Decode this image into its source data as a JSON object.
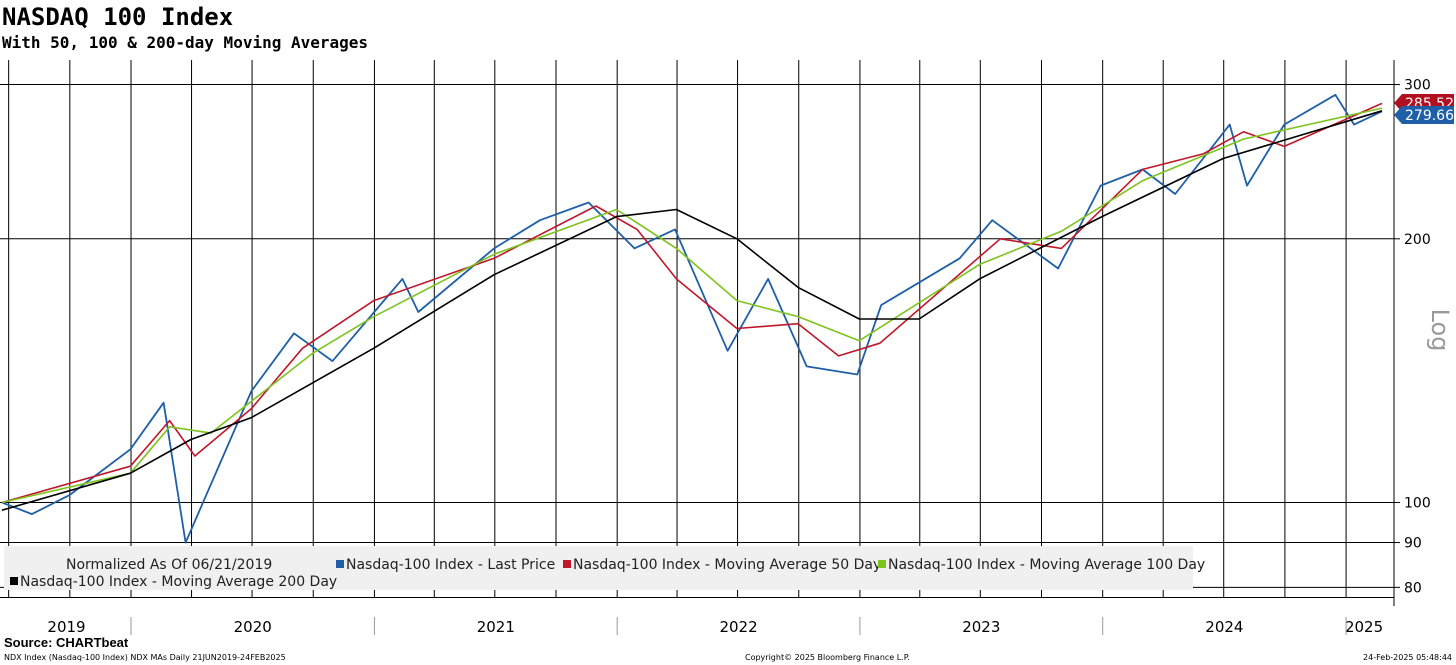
{
  "header": {
    "title": "NASDAQ 100 Index",
    "subtitle": "With 50, 100 & 200-day Moving Averages"
  },
  "footer": {
    "source": "Source: CHARTbeat",
    "left": "NDX Index (Nasdaq-100 Index) NDX MAs  Daily 21JUN2019-24FEB2025",
    "center": "Copyright© 2025 Bloomberg Finance L.P.",
    "right": "24-Feb-2025 05:48:44"
  },
  "colors": {
    "last_price": "#1f5fa8",
    "ma50": "#c0182a",
    "ma100": "#7dc41d",
    "ma200": "#000000"
  },
  "chart_data": {
    "type": "line",
    "title": "NASDAQ 100 Index",
    "subtitle": "With 50, 100 & 200-day Moving Averages",
    "x_unit": "date",
    "xlim": [
      "2019-06-21",
      "2025-02-24"
    ],
    "ylim": [
      78,
      320
    ],
    "y_scale": "log",
    "y_axis_label": "Log",
    "y_ticks": [
      80,
      90,
      100,
      200,
      300
    ],
    "x_tick_labels": [
      "2019",
      "2020",
      "2021",
      "2022",
      "2023",
      "2024",
      "2025"
    ],
    "legend_title": "Normalized As Of 06/21/2019",
    "legend_position": "bottom",
    "grid": true,
    "last_values": [
      {
        "series": "Nasdaq-100 Index - Moving Average 50 Day",
        "label": "285.52"
      },
      {
        "series": "Nasdaq-100 Index - Last Price",
        "label": "279.66"
      }
    ],
    "series": [
      {
        "name": "Nasdaq-100 Index - Last Price",
        "color": "#1f5fa8",
        "x": [
          "2019-06-21",
          "2019-08-05",
          "2019-10-01",
          "2019-12-31",
          "2020-02-19",
          "2020-03-23",
          "2020-06-30",
          "2020-09-02",
          "2020-10-30",
          "2021-02-12",
          "2021-03-08",
          "2021-06-30",
          "2021-09-07",
          "2021-11-19",
          "2022-01-27",
          "2022-03-29",
          "2022-06-16",
          "2022-08-16",
          "2022-10-13",
          "2022-12-28",
          "2023-02-02",
          "2023-05-31",
          "2023-07-19",
          "2023-10-26",
          "2023-12-29",
          "2024-03-01",
          "2024-04-19",
          "2024-07-10",
          "2024-08-05",
          "2024-09-30",
          "2024-12-16",
          "2025-01-13",
          "2025-02-24"
        ],
        "values": [
          100,
          97,
          102,
          115,
          130,
          90,
          134,
          156,
          145,
          180,
          165,
          195,
          210,
          220,
          195,
          205,
          149,
          180,
          143,
          140,
          168,
          190,
          210,
          185,
          230,
          240,
          225,
          270,
          230,
          270,
          292,
          270,
          279.66
        ]
      },
      {
        "name": "Nasdaq-100 Index - Moving Average 50 Day",
        "color": "#c0182a",
        "x": [
          "2019-06-21",
          "2019-12-31",
          "2020-02-28",
          "2020-04-06",
          "2020-06-30",
          "2020-09-15",
          "2020-12-31",
          "2021-06-30",
          "2021-11-30",
          "2022-01-31",
          "2022-03-31",
          "2022-06-30",
          "2022-09-30",
          "2022-11-30",
          "2023-01-31",
          "2023-07-31",
          "2023-10-31",
          "2024-03-01",
          "2024-05-31",
          "2024-07-31",
          "2024-09-30",
          "2025-02-24"
        ],
        "values": [
          100,
          110,
          124,
          113,
          128,
          150,
          170,
          190,
          218,
          205,
          180,
          158,
          160,
          147,
          152,
          200,
          195,
          240,
          250,
          265,
          255,
          285.52
        ]
      },
      {
        "name": "Nasdaq-100 Index - Moving Average 100 Day",
        "color": "#7dc41d",
        "x": [
          "2019-06-21",
          "2019-12-31",
          "2020-02-28",
          "2020-04-30",
          "2020-09-30",
          "2020-12-31",
          "2021-06-30",
          "2021-12-31",
          "2022-03-31",
          "2022-06-30",
          "2022-09-30",
          "2022-12-31",
          "2023-06-30",
          "2023-10-31",
          "2024-03-01",
          "2024-07-31",
          "2025-02-24"
        ],
        "values": [
          100,
          108,
          122,
          120,
          148,
          163,
          192,
          216,
          195,
          170,
          163,
          153,
          187,
          204,
          233,
          260,
          282
        ]
      },
      {
        "name": "Nasdaq-100 Index - Moving Average 200 Day",
        "color": "#000000",
        "x": [
          "2019-06-21",
          "2019-12-31",
          "2020-03-31",
          "2020-06-30",
          "2020-12-31",
          "2021-06-30",
          "2021-12-31",
          "2022-03-31",
          "2022-06-30",
          "2022-09-30",
          "2022-12-31",
          "2023-03-31",
          "2023-06-30",
          "2023-12-31",
          "2024-06-30",
          "2024-12-31",
          "2025-02-24"
        ],
        "values": [
          98,
          108,
          118,
          125,
          150,
          182,
          212,
          216,
          200,
          176,
          162,
          162,
          180,
          212,
          247,
          272,
          280
        ]
      }
    ]
  }
}
